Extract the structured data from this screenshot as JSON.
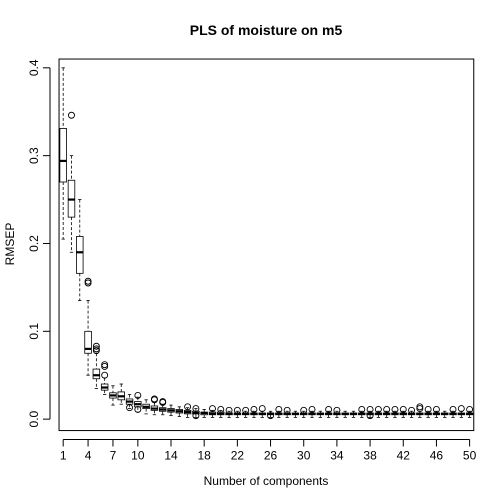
{
  "chart_data": {
    "type": "box",
    "title": "PLS of moisture on m5",
    "xlabel": "Number of components",
    "ylabel": "RMSEP",
    "xlim": [
      0.5,
      50.5
    ],
    "ylim": [
      -0.013,
      0.41
    ],
    "x_ticks": [
      1,
      4,
      7,
      10,
      14,
      18,
      22,
      26,
      30,
      34,
      38,
      42,
      46,
      50
    ],
    "y_ticks": [
      0.0,
      0.1,
      0.2,
      0.3,
      0.4
    ],
    "y_tick_labels": [
      "0.0",
      "0.1",
      "0.2",
      "0.3",
      "0.4"
    ],
    "grid": false,
    "legend": "none",
    "box_color": "#000000",
    "median_color": "#000000",
    "boxes": [
      {
        "x": 1,
        "q1": 0.27,
        "median": 0.294,
        "q3": 0.331,
        "whisker_low": 0.205,
        "whisker_high": 0.4,
        "outliers": []
      },
      {
        "x": 2,
        "q1": 0.23,
        "median": 0.25,
        "q3": 0.272,
        "whisker_low": 0.19,
        "whisker_high": 0.3,
        "outliers": [
          0.346
        ]
      },
      {
        "x": 3,
        "q1": 0.166,
        "median": 0.19,
        "q3": 0.208,
        "whisker_low": 0.135,
        "whisker_high": 0.25,
        "outliers": []
      },
      {
        "x": 4,
        "q1": 0.075,
        "median": 0.08,
        "q3": 0.1,
        "whisker_low": 0.05,
        "whisker_high": 0.135,
        "outliers": [
          0.155,
          0.157
        ]
      },
      {
        "x": 5,
        "q1": 0.046,
        "median": 0.05,
        "q3": 0.057,
        "whisker_low": 0.035,
        "whisker_high": 0.075,
        "outliers": [
          0.078,
          0.08,
          0.083
        ]
      },
      {
        "x": 6,
        "q1": 0.033,
        "median": 0.036,
        "q3": 0.04,
        "whisker_low": 0.028,
        "whisker_high": 0.047,
        "outliers": [
          0.05,
          0.06,
          0.062
        ]
      },
      {
        "x": 7,
        "q1": 0.024,
        "median": 0.027,
        "q3": 0.03,
        "whisker_low": 0.016,
        "whisker_high": 0.038,
        "outliers": []
      },
      {
        "x": 8,
        "q1": 0.022,
        "median": 0.026,
        "q3": 0.031,
        "whisker_low": 0.017,
        "whisker_high": 0.04,
        "outliers": []
      },
      {
        "x": 9,
        "q1": 0.017,
        "median": 0.02,
        "q3": 0.023,
        "whisker_low": 0.012,
        "whisker_high": 0.028,
        "outliers": [
          0.013
        ]
      },
      {
        "x": 10,
        "q1": 0.014,
        "median": 0.017,
        "q3": 0.02,
        "whisker_low": 0.008,
        "whisker_high": 0.025,
        "outliers": [
          0.027,
          0.011
        ]
      },
      {
        "x": 11,
        "q1": 0.012,
        "median": 0.014,
        "q3": 0.017,
        "whisker_low": 0.006,
        "whisker_high": 0.022,
        "outliers": []
      },
      {
        "x": 12,
        "q1": 0.01,
        "median": 0.012,
        "q3": 0.015,
        "whisker_low": 0.005,
        "whisker_high": 0.019,
        "outliers": [
          0.023,
          0.022
        ]
      },
      {
        "x": 13,
        "q1": 0.009,
        "median": 0.011,
        "q3": 0.013,
        "whisker_low": 0.005,
        "whisker_high": 0.017,
        "outliers": [
          0.02,
          0.019
        ]
      },
      {
        "x": 14,
        "q1": 0.008,
        "median": 0.01,
        "q3": 0.012,
        "whisker_low": 0.004,
        "whisker_high": 0.016,
        "outliers": []
      },
      {
        "x": 15,
        "q1": 0.007,
        "median": 0.009,
        "q3": 0.011,
        "whisker_low": 0.003,
        "whisker_high": 0.014,
        "outliers": []
      },
      {
        "x": 16,
        "q1": 0.006,
        "median": 0.008,
        "q3": 0.01,
        "whisker_low": 0.002,
        "whisker_high": 0.013,
        "outliers": [
          0.014
        ]
      },
      {
        "x": 17,
        "q1": 0.006,
        "median": 0.007,
        "q3": 0.009,
        "whisker_low": 0.002,
        "whisker_high": 0.012,
        "outliers": [
          0.012,
          0.004
        ]
      },
      {
        "x": 18,
        "q1": 0.005,
        "median": 0.007,
        "q3": 0.008,
        "whisker_low": 0.002,
        "whisker_high": 0.011,
        "outliers": []
      },
      {
        "x": 19,
        "q1": 0.005,
        "median": 0.006,
        "q3": 0.008,
        "whisker_low": 0.002,
        "whisker_high": 0.01,
        "outliers": [
          0.012
        ]
      },
      {
        "x": 20,
        "q1": 0.005,
        "median": 0.006,
        "q3": 0.008,
        "whisker_low": 0.002,
        "whisker_high": 0.01,
        "outliers": [
          0.011
        ]
      },
      {
        "x": 21,
        "q1": 0.005,
        "median": 0.006,
        "q3": 0.007,
        "whisker_low": 0.002,
        "whisker_high": 0.009,
        "outliers": [
          0.01
        ]
      },
      {
        "x": 22,
        "q1": 0.005,
        "median": 0.006,
        "q3": 0.007,
        "whisker_low": 0.002,
        "whisker_high": 0.009,
        "outliers": [
          0.01
        ]
      },
      {
        "x": 23,
        "q1": 0.005,
        "median": 0.006,
        "q3": 0.007,
        "whisker_low": 0.002,
        "whisker_high": 0.009,
        "outliers": [
          0.01
        ]
      },
      {
        "x": 24,
        "q1": 0.005,
        "median": 0.006,
        "q3": 0.007,
        "whisker_low": 0.002,
        "whisker_high": 0.009,
        "outliers": [
          0.011
        ]
      },
      {
        "x": 25,
        "q1": 0.005,
        "median": 0.006,
        "q3": 0.007,
        "whisker_low": 0.002,
        "whisker_high": 0.009,
        "outliers": [
          0.012
        ]
      },
      {
        "x": 26,
        "q1": 0.005,
        "median": 0.006,
        "q3": 0.007,
        "whisker_low": 0.002,
        "whisker_high": 0.009,
        "outliers": [
          0.004
        ]
      },
      {
        "x": 27,
        "q1": 0.005,
        "median": 0.006,
        "q3": 0.007,
        "whisker_low": 0.002,
        "whisker_high": 0.009,
        "outliers": [
          0.011
        ]
      },
      {
        "x": 28,
        "q1": 0.005,
        "median": 0.006,
        "q3": 0.007,
        "whisker_low": 0.002,
        "whisker_high": 0.009,
        "outliers": [
          0.01
        ]
      },
      {
        "x": 29,
        "q1": 0.005,
        "median": 0.006,
        "q3": 0.007,
        "whisker_low": 0.002,
        "whisker_high": 0.009,
        "outliers": []
      },
      {
        "x": 30,
        "q1": 0.005,
        "median": 0.006,
        "q3": 0.007,
        "whisker_low": 0.002,
        "whisker_high": 0.009,
        "outliers": [
          0.01
        ]
      },
      {
        "x": 31,
        "q1": 0.005,
        "median": 0.006,
        "q3": 0.007,
        "whisker_low": 0.002,
        "whisker_high": 0.009,
        "outliers": [
          0.011
        ]
      },
      {
        "x": 32,
        "q1": 0.005,
        "median": 0.006,
        "q3": 0.007,
        "whisker_low": 0.002,
        "whisker_high": 0.009,
        "outliers": []
      },
      {
        "x": 33,
        "q1": 0.005,
        "median": 0.006,
        "q3": 0.007,
        "whisker_low": 0.002,
        "whisker_high": 0.009,
        "outliers": [
          0.011
        ]
      },
      {
        "x": 34,
        "q1": 0.005,
        "median": 0.006,
        "q3": 0.007,
        "whisker_low": 0.002,
        "whisker_high": 0.009,
        "outliers": [
          0.01
        ]
      },
      {
        "x": 35,
        "q1": 0.005,
        "median": 0.006,
        "q3": 0.007,
        "whisker_low": 0.002,
        "whisker_high": 0.009,
        "outliers": []
      },
      {
        "x": 36,
        "q1": 0.005,
        "median": 0.006,
        "q3": 0.007,
        "whisker_low": 0.002,
        "whisker_high": 0.009,
        "outliers": []
      },
      {
        "x": 37,
        "q1": 0.005,
        "median": 0.006,
        "q3": 0.007,
        "whisker_low": 0.002,
        "whisker_high": 0.009,
        "outliers": [
          0.011
        ]
      },
      {
        "x": 38,
        "q1": 0.005,
        "median": 0.006,
        "q3": 0.007,
        "whisker_low": 0.002,
        "whisker_high": 0.009,
        "outliers": [
          0.011,
          0.004
        ]
      },
      {
        "x": 39,
        "q1": 0.005,
        "median": 0.006,
        "q3": 0.007,
        "whisker_low": 0.002,
        "whisker_high": 0.009,
        "outliers": [
          0.011
        ]
      },
      {
        "x": 40,
        "q1": 0.005,
        "median": 0.006,
        "q3": 0.007,
        "whisker_low": 0.002,
        "whisker_high": 0.009,
        "outliers": [
          0.011
        ]
      },
      {
        "x": 41,
        "q1": 0.005,
        "median": 0.006,
        "q3": 0.007,
        "whisker_low": 0.002,
        "whisker_high": 0.009,
        "outliers": [
          0.011
        ]
      },
      {
        "x": 42,
        "q1": 0.005,
        "median": 0.006,
        "q3": 0.007,
        "whisker_low": 0.002,
        "whisker_high": 0.009,
        "outliers": [
          0.011
        ]
      },
      {
        "x": 43,
        "q1": 0.005,
        "median": 0.006,
        "q3": 0.007,
        "whisker_low": 0.002,
        "whisker_high": 0.009,
        "outliers": [
          0.01
        ]
      },
      {
        "x": 44,
        "q1": 0.005,
        "median": 0.006,
        "q3": 0.007,
        "whisker_low": 0.002,
        "whisker_high": 0.009,
        "outliers": [
          0.012,
          0.014
        ]
      },
      {
        "x": 45,
        "q1": 0.005,
        "median": 0.006,
        "q3": 0.007,
        "whisker_low": 0.002,
        "whisker_high": 0.009,
        "outliers": [
          0.011
        ]
      },
      {
        "x": 46,
        "q1": 0.005,
        "median": 0.006,
        "q3": 0.007,
        "whisker_low": 0.002,
        "whisker_high": 0.009,
        "outliers": [
          0.011
        ]
      },
      {
        "x": 47,
        "q1": 0.005,
        "median": 0.006,
        "q3": 0.007,
        "whisker_low": 0.002,
        "whisker_high": 0.009,
        "outliers": []
      },
      {
        "x": 48,
        "q1": 0.005,
        "median": 0.006,
        "q3": 0.007,
        "whisker_low": 0.002,
        "whisker_high": 0.009,
        "outliers": [
          0.011
        ]
      },
      {
        "x": 49,
        "q1": 0.005,
        "median": 0.006,
        "q3": 0.007,
        "whisker_low": 0.002,
        "whisker_high": 0.009,
        "outliers": [
          0.012
        ]
      },
      {
        "x": 50,
        "q1": 0.005,
        "median": 0.006,
        "q3": 0.007,
        "whisker_low": 0.002,
        "whisker_high": 0.009,
        "outliers": [
          0.011
        ]
      }
    ]
  }
}
